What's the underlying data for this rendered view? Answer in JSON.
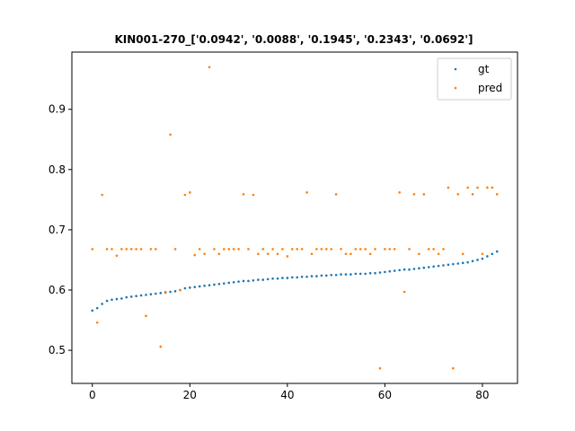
{
  "chart_data": {
    "type": "scatter",
    "title": "KIN001-270_['0.0942', '0.0088', '0.1945', '0.2343', '0.0692']",
    "xlabel": "",
    "ylabel": "",
    "xlim": [
      -4.2,
      87.2
    ],
    "ylim": [
      0.445,
      0.995
    ],
    "xticks": [
      0,
      20,
      40,
      60,
      80
    ],
    "xtick_labels": [
      "0",
      "20",
      "40",
      "60",
      "80"
    ],
    "yticks": [
      0.5,
      0.6,
      0.7,
      0.8,
      0.9
    ],
    "ytick_labels": [
      "0.5",
      "0.6",
      "0.7",
      "0.8",
      "0.9"
    ],
    "grid": false,
    "legend_position": "top-right",
    "series": [
      {
        "name": "gt",
        "color": "#1f77b4",
        "x": [
          0,
          1,
          2,
          3,
          4,
          5,
          6,
          7,
          8,
          9,
          10,
          11,
          12,
          13,
          14,
          15,
          16,
          17,
          18,
          19,
          20,
          21,
          22,
          23,
          24,
          25,
          26,
          27,
          28,
          29,
          30,
          31,
          32,
          33,
          34,
          35,
          36,
          37,
          38,
          39,
          40,
          41,
          42,
          43,
          44,
          45,
          46,
          47,
          48,
          49,
          50,
          51,
          52,
          53,
          54,
          55,
          56,
          57,
          58,
          59,
          60,
          61,
          62,
          63,
          64,
          65,
          66,
          67,
          68,
          69,
          70,
          71,
          72,
          73,
          74,
          75,
          76,
          77,
          78,
          79,
          80,
          81,
          82,
          83
        ],
        "y": [
          0.566,
          0.57,
          0.577,
          0.582,
          0.584,
          0.585,
          0.586,
          0.588,
          0.589,
          0.59,
          0.591,
          0.592,
          0.593,
          0.594,
          0.595,
          0.596,
          0.597,
          0.598,
          0.6,
          0.603,
          0.604,
          0.605,
          0.606,
          0.607,
          0.608,
          0.609,
          0.61,
          0.611,
          0.612,
          0.613,
          0.614,
          0.615,
          0.615,
          0.616,
          0.617,
          0.617,
          0.618,
          0.619,
          0.619,
          0.62,
          0.62,
          0.621,
          0.621,
          0.622,
          0.622,
          0.623,
          0.623,
          0.624,
          0.624,
          0.625,
          0.625,
          0.626,
          0.626,
          0.626,
          0.627,
          0.627,
          0.627,
          0.628,
          0.628,
          0.629,
          0.63,
          0.631,
          0.632,
          0.633,
          0.634,
          0.634,
          0.635,
          0.636,
          0.637,
          0.638,
          0.639,
          0.64,
          0.641,
          0.642,
          0.643,
          0.644,
          0.645,
          0.646,
          0.648,
          0.65,
          0.652,
          0.656,
          0.66,
          0.664
        ]
      },
      {
        "name": "pred",
        "color": "#ff7f0e",
        "x": [
          0,
          1,
          2,
          3,
          4,
          5,
          6,
          7,
          8,
          9,
          10,
          11,
          12,
          13,
          14,
          15,
          16,
          17,
          18,
          19,
          20,
          21,
          22,
          23,
          24,
          25,
          26,
          27,
          28,
          29,
          30,
          31,
          32,
          33,
          34,
          35,
          36,
          37,
          38,
          39,
          40,
          41,
          42,
          43,
          44,
          45,
          46,
          47,
          48,
          49,
          50,
          51,
          52,
          53,
          54,
          55,
          56,
          57,
          58,
          59,
          60,
          61,
          62,
          63,
          64,
          65,
          66,
          67,
          68,
          69,
          70,
          71,
          72,
          73,
          74,
          75,
          76,
          77,
          78,
          79,
          80,
          81,
          82,
          83
        ],
        "y": [
          0.668,
          0.546,
          0.758,
          0.668,
          0.668,
          0.657,
          0.668,
          0.668,
          0.668,
          0.668,
          0.668,
          0.557,
          0.668,
          0.668,
          0.506,
          0.597,
          0.858,
          0.668,
          0.6,
          0.758,
          0.762,
          0.658,
          0.668,
          0.66,
          0.97,
          0.668,
          0.66,
          0.668,
          0.668,
          0.668,
          0.668,
          0.759,
          0.668,
          0.758,
          0.66,
          0.668,
          0.66,
          0.668,
          0.66,
          0.668,
          0.656,
          0.668,
          0.668,
          0.668,
          0.762,
          0.66,
          0.668,
          0.668,
          0.668,
          0.668,
          0.759,
          0.668,
          0.66,
          0.66,
          0.668,
          0.668,
          0.668,
          0.66,
          0.668,
          0.47,
          0.668,
          0.668,
          0.668,
          0.762,
          0.597,
          0.668,
          0.759,
          0.66,
          0.759,
          0.668,
          0.668,
          0.66,
          0.668,
          0.77,
          0.47,
          0.759,
          0.66,
          0.77,
          0.759,
          0.77,
          0.66,
          0.77,
          0.77,
          0.759
        ]
      }
    ]
  }
}
